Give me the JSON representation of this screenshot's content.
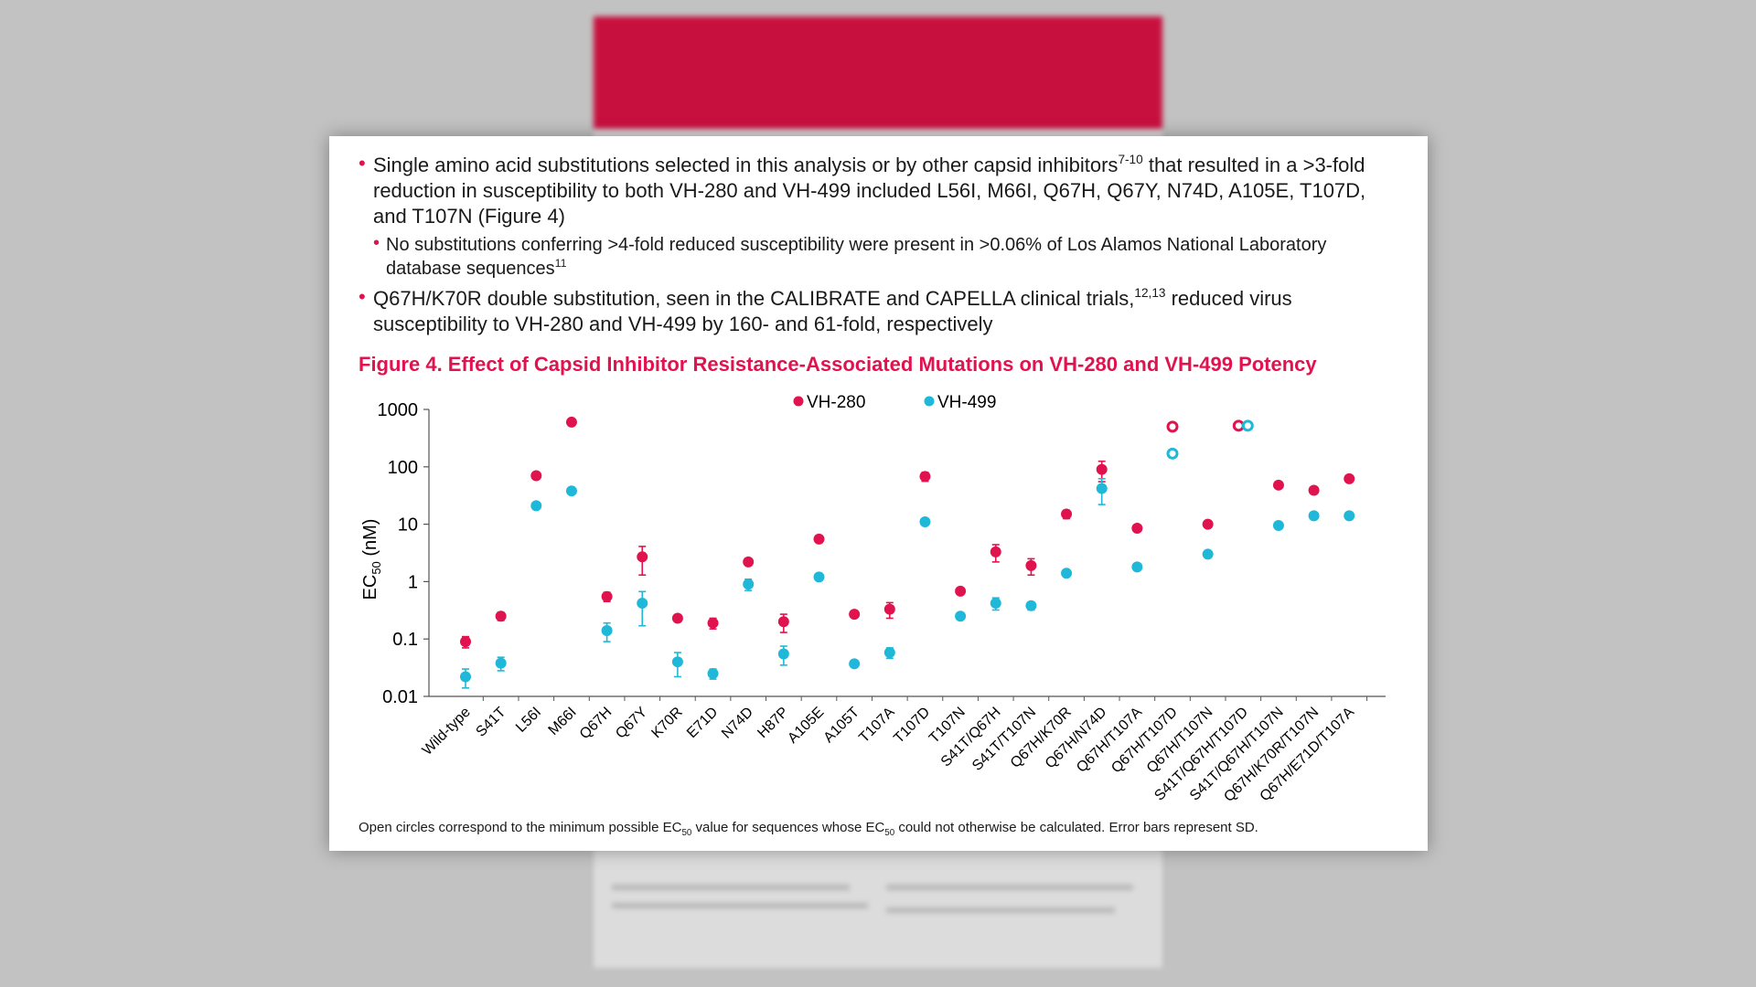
{
  "bullets": [
    {
      "parts": [
        "Single amino acid substitutions selected in this analysis or by other capsid inhibitors",
        "7-10",
        " that resulted in a >3-fold reduction in susceptibility to both VH-280 and VH-499 included L56I, M66I, Q67H, Q67Y, N74D, A105E, T107D, and T107N (Figure 4)"
      ],
      "sub": {
        "parts": [
          "No substitutions conferring >4-fold reduced susceptibility were present in >0.06% of Los Alamos National Laboratory database sequences",
          "11"
        ]
      }
    },
    {
      "parts": [
        "Q67H/K70R double substitution, seen in the CALIBRATE and CAPELLA clinical trials,",
        "12,13",
        " reduced virus susceptibility to VH-280 and VH-499 by 160- and 61-fold, respectively"
      ]
    }
  ],
  "footnote": [
    "Open circles correspond to the minimum possible EC",
    "50",
    " value for sequences whose EC",
    "50",
    " could not otherwise be calculated. Error bars represent SD."
  ],
  "chart_data": {
    "type": "scatter",
    "title": "Figure 4. Effect of Capsid Inhibitor Resistance-Associated Mutations on VH-280 and VH-499 Potency",
    "ylabel": [
      "EC",
      "50",
      " (nM)"
    ],
    "log_y": true,
    "ylim": [
      0.01,
      1000
    ],
    "yticks": [
      0.01,
      0.1,
      1,
      10,
      100,
      1000
    ],
    "categories": [
      "Wild-type",
      "S41T",
      "L56I",
      "M66I",
      "Q67H",
      "Q67Y",
      "K70R",
      "E71D",
      "N74D",
      "H87P",
      "A105E",
      "A105T",
      "T107A",
      "T107D",
      "T107N",
      "S41T/Q67H",
      "S41T/T107N",
      "Q67H/K70R",
      "Q67H/N74D",
      "Q67H/T107A",
      "Q67H/T107D",
      "Q67H/T107N",
      "S41T/Q67H/T107D",
      "S41T/Q67H/T107N",
      "Q67H/K70R/T107N",
      "Q67H/E71D/T107A"
    ],
    "series": [
      {
        "name": "VH-280",
        "color": "#e0134f",
        "values": [
          0.09,
          0.25,
          70,
          600,
          0.55,
          2.7,
          0.23,
          0.19,
          2.2,
          0.2,
          5.5,
          0.27,
          0.33,
          68,
          0.68,
          3.3,
          1.9,
          15,
          90,
          8.5,
          500,
          10,
          520,
          48,
          39,
          62
        ],
        "errors": [
          0.02,
          0.04,
          null,
          null,
          0.1,
          1.4,
          null,
          0.04,
          null,
          0.07,
          null,
          null,
          0.1,
          12,
          null,
          1.1,
          0.6,
          2.5,
          35,
          null,
          null,
          null,
          null,
          null,
          null,
          null
        ],
        "open": [
          false,
          false,
          false,
          false,
          false,
          false,
          false,
          false,
          false,
          false,
          false,
          false,
          false,
          false,
          false,
          false,
          false,
          false,
          false,
          false,
          true,
          false,
          true,
          false,
          false,
          false
        ]
      },
      {
        "name": "VH-499",
        "color": "#1fb8d8",
        "values": [
          0.022,
          0.038,
          21,
          38,
          0.14,
          0.42,
          0.04,
          0.025,
          0.9,
          0.055,
          1.2,
          0.037,
          0.058,
          11,
          0.25,
          0.42,
          0.38,
          1.4,
          42,
          1.8,
          170,
          3,
          520,
          9.5,
          14,
          14
        ],
        "errors": [
          0.008,
          0.01,
          null,
          null,
          0.05,
          0.25,
          0.018,
          0.005,
          0.2,
          0.02,
          null,
          null,
          0.012,
          null,
          null,
          0.1,
          0.06,
          null,
          20,
          null,
          null,
          null,
          null,
          null,
          null,
          null
        ],
        "open": [
          false,
          false,
          false,
          false,
          false,
          false,
          false,
          false,
          false,
          false,
          false,
          false,
          false,
          false,
          false,
          false,
          false,
          false,
          false,
          false,
          true,
          false,
          true,
          false,
          false,
          false
        ]
      }
    ]
  }
}
